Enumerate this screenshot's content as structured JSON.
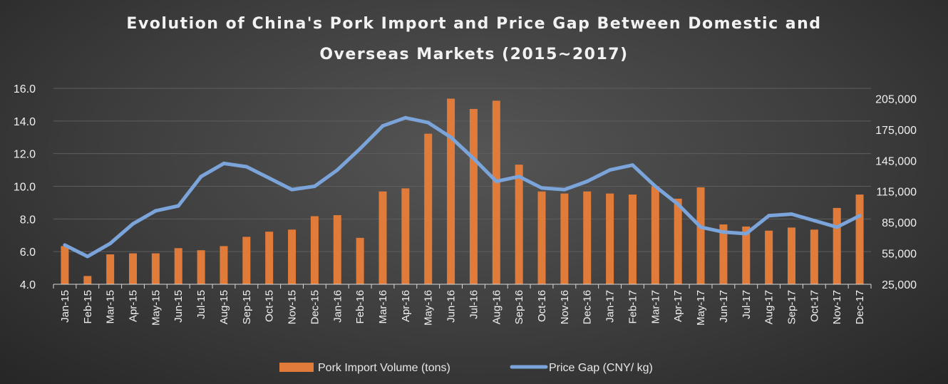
{
  "chart_data": {
    "type": "bar",
    "title": "Evolution of China's Pork Import and Price Gap Between Domestic and Overseas Markets (2015~2017)",
    "title_lines": [
      "Evolution of China's Pork Import and Price Gap Between Domestic and",
      "Overseas Markets (2015~2017)"
    ],
    "categories": [
      "Jan-15",
      "Feb-15",
      "Mar-15",
      "Apr-15",
      "May-15",
      "Jun-15",
      "Jul-15",
      "Aug-15",
      "Sep-15",
      "Oct-15",
      "Nov-15",
      "Dec-15",
      "Jan-16",
      "Feb-16",
      "Mar-16",
      "Apr-16",
      "May-16",
      "Jun-16",
      "Jul-16",
      "Aug-16",
      "Sep-16",
      "Oct-16",
      "Nov-16",
      "Dec-16",
      "Jan-17",
      "Feb-17",
      "Mar-17",
      "Apr-17",
      "May-17",
      "Jun-17",
      "Jul-17",
      "Aug-17",
      "Sep-17",
      "Oct-17",
      "Nov-17",
      "Dec-17"
    ],
    "left_axis": {
      "min": 4.0,
      "max": 16.0,
      "ticks": [
        "4.0",
        "6.0",
        "8.0",
        "10.0",
        "12.0",
        "14.0",
        "16.0"
      ]
    },
    "right_axis": {
      "min": 25000,
      "max": 215000,
      "ticks": [
        "25,000",
        "55,000",
        "85,000",
        "115,000",
        "145,000",
        "175,000",
        "205,000"
      ]
    },
    "series": [
      {
        "name": "Pork Import Volume (tons)",
        "type": "bar",
        "axis": "right",
        "color": "#e07b39",
        "values": [
          62000,
          33000,
          54000,
          55000,
          55000,
          60000,
          58000,
          62000,
          71000,
          76000,
          78000,
          91000,
          92000,
          70000,
          115000,
          118000,
          171000,
          205000,
          195000,
          203000,
          141000,
          115000,
          113000,
          115000,
          113000,
          112000,
          120000,
          108000,
          119000,
          83000,
          81000,
          77000,
          80000,
          78000,
          99000,
          112000
        ]
      },
      {
        "name": "Price Gap  (CNY/ kg)",
        "type": "line",
        "axis": "left",
        "color": "#7ba4db",
        "values": [
          6.4,
          5.7,
          6.5,
          7.7,
          8.5,
          8.8,
          10.6,
          11.4,
          11.2,
          10.5,
          9.8,
          10.0,
          11.0,
          12.3,
          13.7,
          14.2,
          13.9,
          13.0,
          11.7,
          10.3,
          10.6,
          9.9,
          9.8,
          10.3,
          11.0,
          11.3,
          10.0,
          8.9,
          7.5,
          7.2,
          7.1,
          8.2,
          8.3,
          7.9,
          7.5,
          8.2
        ]
      }
    ],
    "grid": true,
    "legend": "bottom"
  }
}
